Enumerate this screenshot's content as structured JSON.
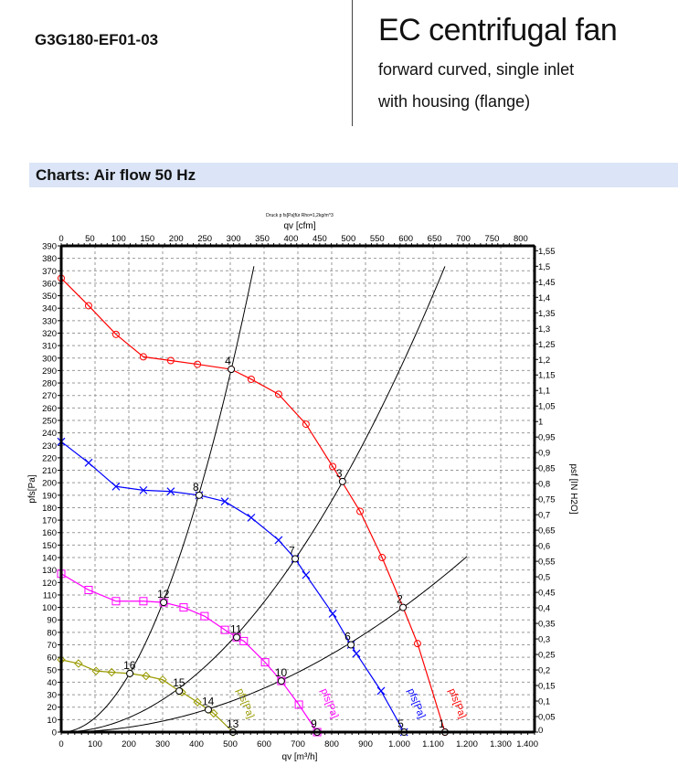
{
  "header": {
    "model": "G3G180-EF01-03",
    "title": "EC centrifugal fan",
    "subtitle_1": "forward curved, single inlet",
    "subtitle_2": "with housing (flange)"
  },
  "section": {
    "title": "Charts: Air flow 50 Hz"
  },
  "chart_data": {
    "type": "line",
    "title": "Druck p fs[Pa]für Rho=1,2kg/m^3",
    "xlabel": "qv [m³/h]",
    "x2label": "qv [cfm]",
    "ylabel": "pfs[Pa]",
    "y2label": "psf [IN H2O]",
    "xlim": [
      0,
      1400
    ],
    "ylim": [
      0,
      390
    ],
    "x2lim": [
      0,
      800
    ],
    "x_ticks": [
      "0",
      "100",
      "200",
      "300",
      "400",
      "500",
      "600",
      "700",
      "800",
      "900",
      "1.000",
      "1.100",
      "1.200",
      "1.300",
      "1.400"
    ],
    "x2_ticks": [
      "0",
      "50",
      "100",
      "150",
      "200",
      "250",
      "300",
      "350",
      "400",
      "450",
      "500",
      "550",
      "600",
      "650",
      "700",
      "750",
      "800"
    ],
    "y_ticks": [
      "0",
      "10",
      "20",
      "30",
      "40",
      "50",
      "60",
      "70",
      "80",
      "90",
      "100",
      "110",
      "120",
      "130",
      "140",
      "150",
      "160",
      "170",
      "180",
      "190",
      "200",
      "210",
      "220",
      "230",
      "240",
      "250",
      "260",
      "270",
      "280",
      "290",
      "300",
      "310",
      "320",
      "330",
      "340",
      "350",
      "360",
      "370",
      "380",
      "390"
    ],
    "y2_ticks": [
      "0",
      "0,05",
      "0,1",
      "0,15",
      "0,2",
      "0,25",
      "0,3",
      "0,35",
      "0,4",
      "0,45",
      "0,5",
      "0,55",
      "0,6",
      "0,65",
      "0,7",
      "0,75",
      "0,8",
      "0,85",
      "0,9",
      "0,95",
      "1",
      "1,05",
      "1,1",
      "1,15",
      "1,2",
      "1,25",
      "1,3",
      "1,35",
      "1,4",
      "1,45",
      "1,5",
      "1,55"
    ],
    "grid": true,
    "series": [
      {
        "name": "pfs[Pa]",
        "color": "#ff0000",
        "marker": "circle",
        "x": [
          0,
          81,
          162,
          243,
          324,
          403,
          503,
          562,
          643,
          724,
          803,
          884,
          949,
          1011,
          1054,
          1135
        ],
        "y": [
          364,
          342,
          319,
          301,
          298,
          295,
          291,
          283,
          271,
          247,
          213,
          177,
          140,
          100,
          71,
          0
        ]
      },
      {
        "name": "pfs[Pa]",
        "color": "#0000ff",
        "marker": "x",
        "x": [
          0,
          81,
          162,
          243,
          324,
          408,
          484,
          562,
          643,
          692,
          724,
          803,
          857,
          873,
          946,
          1014
        ],
        "y": [
          233,
          216,
          197,
          194,
          193,
          190,
          185,
          172,
          154,
          139,
          126,
          95,
          70,
          63,
          33,
          0
        ]
      },
      {
        "name": "pfs[Pa]",
        "color": "#ff00ff",
        "marker": "square",
        "x": [
          0,
          81,
          162,
          243,
          303,
          362,
          424,
          484,
          519,
          540,
          603,
          651,
          703,
          757
        ],
        "y": [
          127,
          114,
          105,
          105,
          104,
          100,
          93,
          82,
          76,
          73,
          56,
          41,
          22,
          0
        ]
      },
      {
        "name": "pfs[Pa]",
        "color": "#999900",
        "marker": "diamond",
        "x": [
          0,
          51,
          103,
          149,
          203,
          251,
          300,
          349,
          357,
          403,
          435,
          451,
          508
        ],
        "y": [
          58,
          55,
          49,
          48,
          47,
          45,
          42,
          33,
          32,
          24,
          18,
          15,
          0
        ]
      }
    ],
    "system_curves": [
      {
        "k": 0.00115,
        "x_max": 573
      },
      {
        "k": 0.00029,
        "x_max": 1135
      },
      {
        "k": 9.78e-05,
        "x_max": 1200
      }
    ],
    "operating_points": [
      {
        "label": "1",
        "x": 1135,
        "y": 0
      },
      {
        "label": "2",
        "x": 1011,
        "y": 100
      },
      {
        "label": "3",
        "x": 832,
        "y": 201
      },
      {
        "label": "4",
        "x": 503,
        "y": 291
      },
      {
        "label": "5",
        "x": 1014,
        "y": 0
      },
      {
        "label": "6",
        "x": 857,
        "y": 70
      },
      {
        "label": "7",
        "x": 692,
        "y": 139
      },
      {
        "label": "8",
        "x": 408,
        "y": 190
      },
      {
        "label": "9",
        "x": 757,
        "y": 0
      },
      {
        "label": "10",
        "x": 651,
        "y": 41
      },
      {
        "label": "11",
        "x": 519,
        "y": 76
      },
      {
        "label": "12",
        "x": 303,
        "y": 104
      },
      {
        "label": "13",
        "x": 508,
        "y": 0
      },
      {
        "label": "14",
        "x": 435,
        "y": 18
      },
      {
        "label": "15",
        "x": 349,
        "y": 33
      },
      {
        "label": "16",
        "x": 203,
        "y": 47
      }
    ]
  }
}
